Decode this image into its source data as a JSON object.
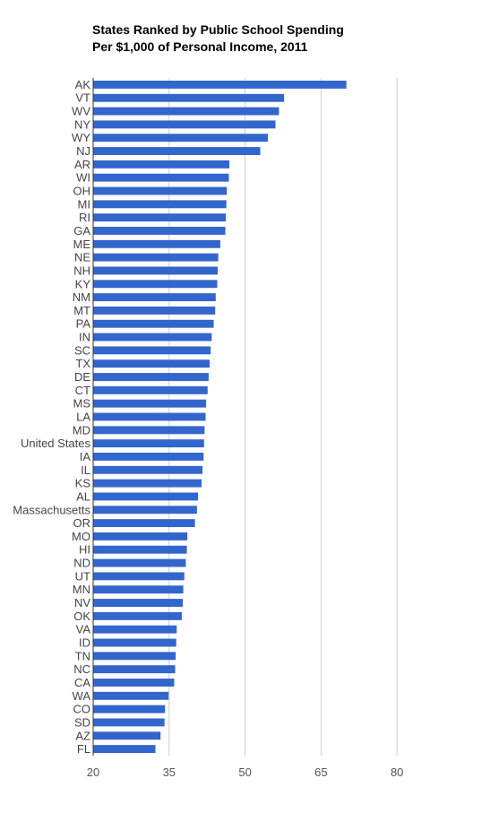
{
  "chart_data": {
    "type": "bar",
    "orientation": "horizontal",
    "title": "States Ranked by Public School Spending",
    "subtitle": "Per $1,000 of Personal Income, 2011",
    "xlabel": "",
    "ylabel": "",
    "xlim": [
      20,
      95
    ],
    "xticks": [
      20,
      35,
      50,
      65,
      80
    ],
    "grid": true,
    "bar_color": "#3366cc",
    "grid_color": "#cccccc",
    "categories": [
      "AK",
      "VT",
      "WV",
      "NY",
      "WY",
      "NJ",
      "AR",
      "WI",
      "OH",
      "MI",
      "RI",
      "GA",
      "ME",
      "NE",
      "NH",
      "KY",
      "NM",
      "MT",
      "PA",
      "IN",
      "SC",
      "TX",
      "DE",
      "CT",
      "MS",
      "LA",
      "MD",
      "United States",
      "IA",
      "IL",
      "KS",
      "AL",
      "Massachusetts",
      "OR",
      "MO",
      "HI",
      "ND",
      "UT",
      "MN",
      "NV",
      "OK",
      "VA",
      "ID",
      "TN",
      "NC",
      "CA",
      "WA",
      "CO",
      "SD",
      "AZ",
      "FL"
    ],
    "values": [
      70.0,
      57.7,
      56.7,
      56.0,
      54.5,
      53.0,
      46.9,
      46.8,
      46.4,
      46.3,
      46.2,
      46.1,
      45.1,
      44.7,
      44.6,
      44.5,
      44.2,
      44.1,
      43.8,
      43.4,
      43.2,
      43.0,
      42.8,
      42.6,
      42.3,
      42.2,
      42.0,
      41.9,
      41.8,
      41.6,
      41.4,
      40.7,
      40.5,
      40.1,
      38.6,
      38.5,
      38.3,
      38.0,
      37.8,
      37.7,
      37.5,
      36.5,
      36.4,
      36.3,
      36.2,
      36.0,
      34.9,
      34.2,
      34.1,
      33.3,
      32.3
    ]
  }
}
